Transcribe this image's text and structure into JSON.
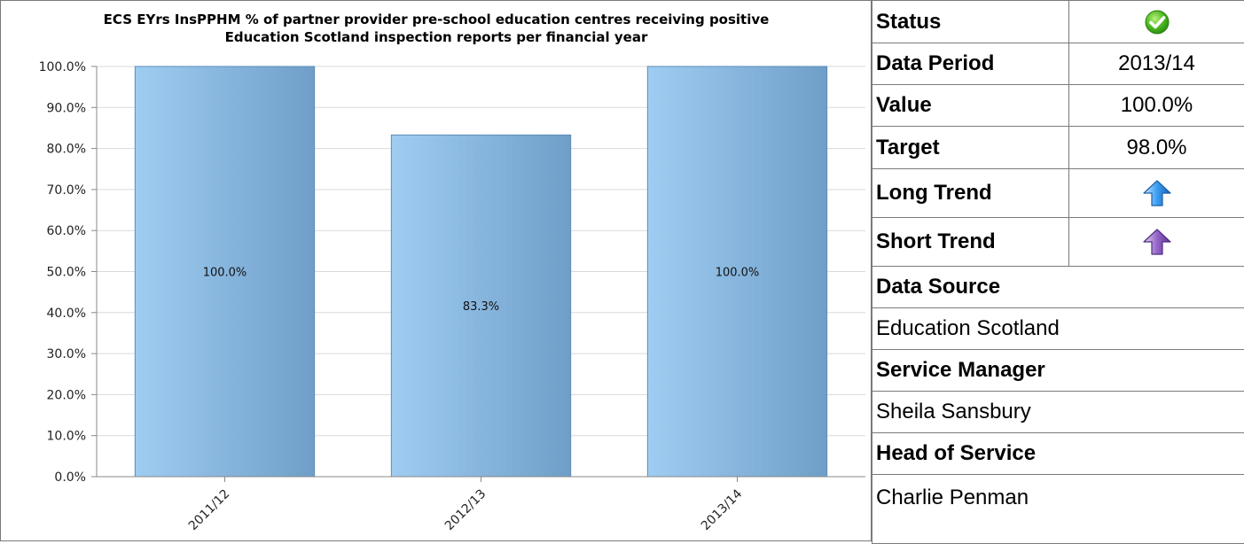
{
  "chart_data": {
    "type": "bar",
    "title": "ECS EYrs InsPPHM % of partner provider pre-school education centres receiving positive Education Scotland inspection reports per financial year",
    "title_lines": [
      "ECS EYrs InsPPHM % of partner provider pre-school education centres receiving positive",
      "Education Scotland inspection reports per financial year"
    ],
    "categories": [
      "2011/12",
      "2012/13",
      "2013/14"
    ],
    "values": [
      100.0,
      83.3,
      100.0
    ],
    "value_labels": [
      "100.0%",
      "83.3%",
      "100.0%"
    ],
    "ylim": [
      0,
      100
    ],
    "yticks": [
      "0.0%",
      "10.0%",
      "20.0%",
      "30.0%",
      "40.0%",
      "50.0%",
      "60.0%",
      "70.0%",
      "80.0%",
      "90.0%",
      "100.0%"
    ],
    "grid": true,
    "bar_color_light": "#9fcdf2",
    "bar_color_dark": "#6f9ec8"
  },
  "info": {
    "status_label": "Status",
    "status_icon": "green-check-icon",
    "data_period_label": "Data Period",
    "data_period_value": "2013/14",
    "value_label": "Value",
    "value_value": "100.0%",
    "target_label": "Target",
    "target_value": "98.0%",
    "long_trend_label": "Long Trend",
    "long_trend_icon": "blue-up-arrow-icon",
    "short_trend_label": "Short Trend",
    "short_trend_icon": "purple-up-arrow-icon",
    "data_source_label": "Data Source",
    "data_source_value": "Education Scotland",
    "service_manager_label": "Service Manager",
    "service_manager_value": "Sheila Sansbury",
    "head_of_service_label": "Head of Service",
    "head_of_service_value": "Charlie Penman"
  }
}
